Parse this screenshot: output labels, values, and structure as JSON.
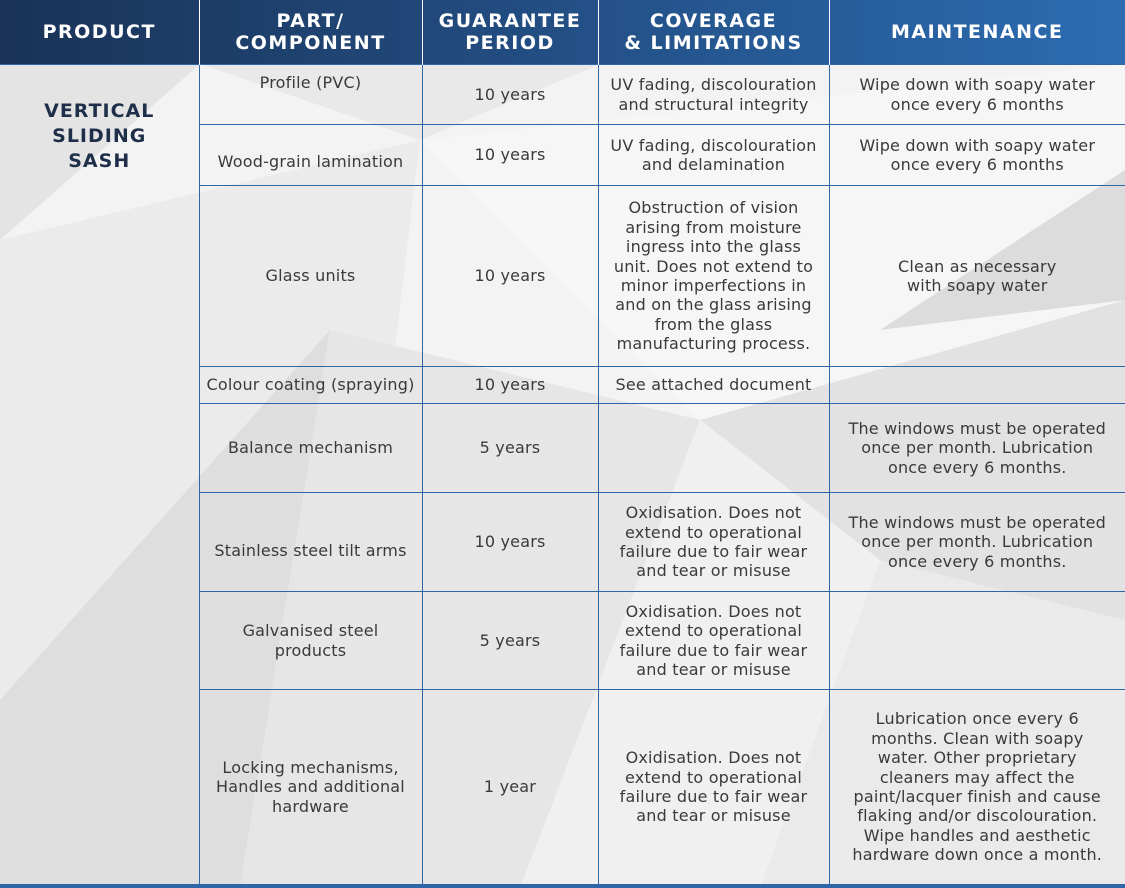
{
  "header": {
    "product": "PRODUCT",
    "part": "PART/\nCOMPONENT",
    "guarantee": "GUARANTEE\nPERIOD",
    "coverage": "COVERAGE\n& LIMITATIONS",
    "maintenance": "MAINTENANCE"
  },
  "product_name": "VERTICAL\nSLIDING\nSASH",
  "rows": [
    {
      "part": "Profile (PVC)",
      "period": "10 years",
      "coverage": "UV fading, discolouration\nand structural integrity",
      "maintenance": "Wipe down with soapy water\nonce every 6 months"
    },
    {
      "part": "Wood-grain lamination",
      "period": "10 years",
      "coverage": "UV fading, discolouration\nand delamination",
      "maintenance": "Wipe down with soapy water\nonce every 6 months"
    },
    {
      "part": "Glass units",
      "period": "10 years",
      "coverage": "Obstruction of vision\narising from moisture\ningress into the glass\nunit. Does not extend to\nminor imperfections in\nand on the glass arising\nfrom the glass\nmanufacturing process.",
      "maintenance": "Clean as necessary\nwith soapy water"
    },
    {
      "part": "Colour coating (spraying)",
      "period": "10 years",
      "coverage": "See attached document",
      "maintenance": ""
    },
    {
      "part": "Balance mechanism",
      "period": "5 years",
      "coverage": "",
      "maintenance": "The windows must be operated\nonce per month. Lubrication\nonce every 6 months."
    },
    {
      "part": "Stainless steel tilt arms",
      "period": "10 years",
      "coverage": "Oxidisation. Does not\nextend to operational\nfailure due to fair wear\nand tear or misuse",
      "maintenance": "The windows must be operated\nonce per month. Lubrication\nonce every 6 months."
    },
    {
      "part": "Galvanised steel\nproducts",
      "period": "5 years",
      "coverage": "Oxidisation. Does not\nextend to operational\nfailure due to fair wear\nand tear or misuse",
      "maintenance": ""
    },
    {
      "part": "Locking mechanisms,\nHandles and additional\nhardware",
      "period": "1 year",
      "coverage": "Oxidisation. Does not\nextend to operational\nfailure due to fair wear\nand tear or misuse",
      "maintenance": "Lubrication once every 6\nmonths. Clean with soapy\nwater. Other proprietary\ncleaners may affect the\npaint/lacquer finish and cause\nflaking and/or discolouration.\nWipe handles and aesthetic\nhardware down once a month."
    }
  ],
  "colors": {
    "header_dark": "#1a3257",
    "header_light": "#2c6cb2",
    "grid_line": "#2e66a8",
    "text": "#3a3a3a"
  }
}
